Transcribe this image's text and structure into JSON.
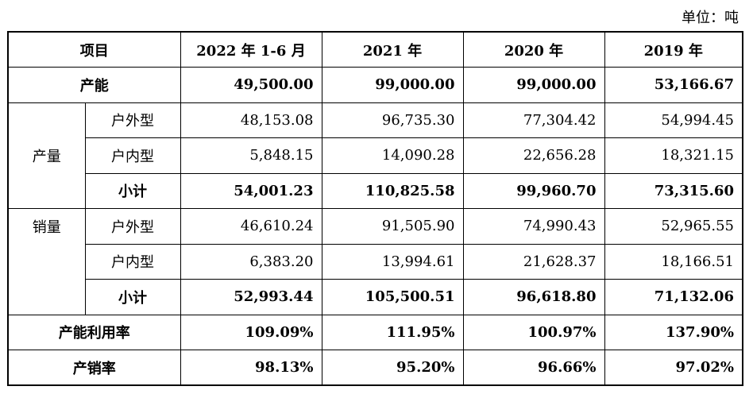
{
  "unit_label": "单位：吨",
  "header": {
    "item": "项目",
    "col1": "2022 年 1-6 月",
    "col2": "2021 年",
    "col3": "2020 年",
    "col4": "2019 年"
  },
  "capacity": {
    "label": "产能",
    "values": [
      "49,500.00",
      "99,000.00",
      "99,000.00",
      "53,166.67"
    ]
  },
  "production": {
    "label": "产量",
    "rows": [
      {
        "label": "户外型",
        "values": [
          "48,153.08",
          "96,735.30",
          "77,304.42",
          "54,994.45"
        ]
      },
      {
        "label": "户内型",
        "values": [
          "5,848.15",
          "14,090.28",
          "22,656.28",
          "18,321.15"
        ]
      },
      {
        "label": "小计",
        "values": [
          "54,001.23",
          "110,825.58",
          "99,960.70",
          "73,315.60"
        ]
      }
    ]
  },
  "sales": {
    "label": "销量",
    "rows": [
      {
        "label": "户外型",
        "values": [
          "46,610.24",
          "91,505.90",
          "74,990.43",
          "52,965.55"
        ]
      },
      {
        "label": "户内型",
        "values": [
          "6,383.20",
          "13,994.61",
          "21,628.37",
          "18,166.51"
        ]
      },
      {
        "label": "小计",
        "values": [
          "52,993.44",
          "105,500.51",
          "96,618.80",
          "71,132.06"
        ]
      }
    ]
  },
  "utilization": {
    "label": "产能利用率",
    "values": [
      "109.09%",
      "111.95%",
      "100.97%",
      "137.90%"
    ]
  },
  "sell_through": {
    "label": "产销率",
    "values": [
      "98.13%",
      "95.20%",
      "96.66%",
      "97.02%"
    ]
  }
}
